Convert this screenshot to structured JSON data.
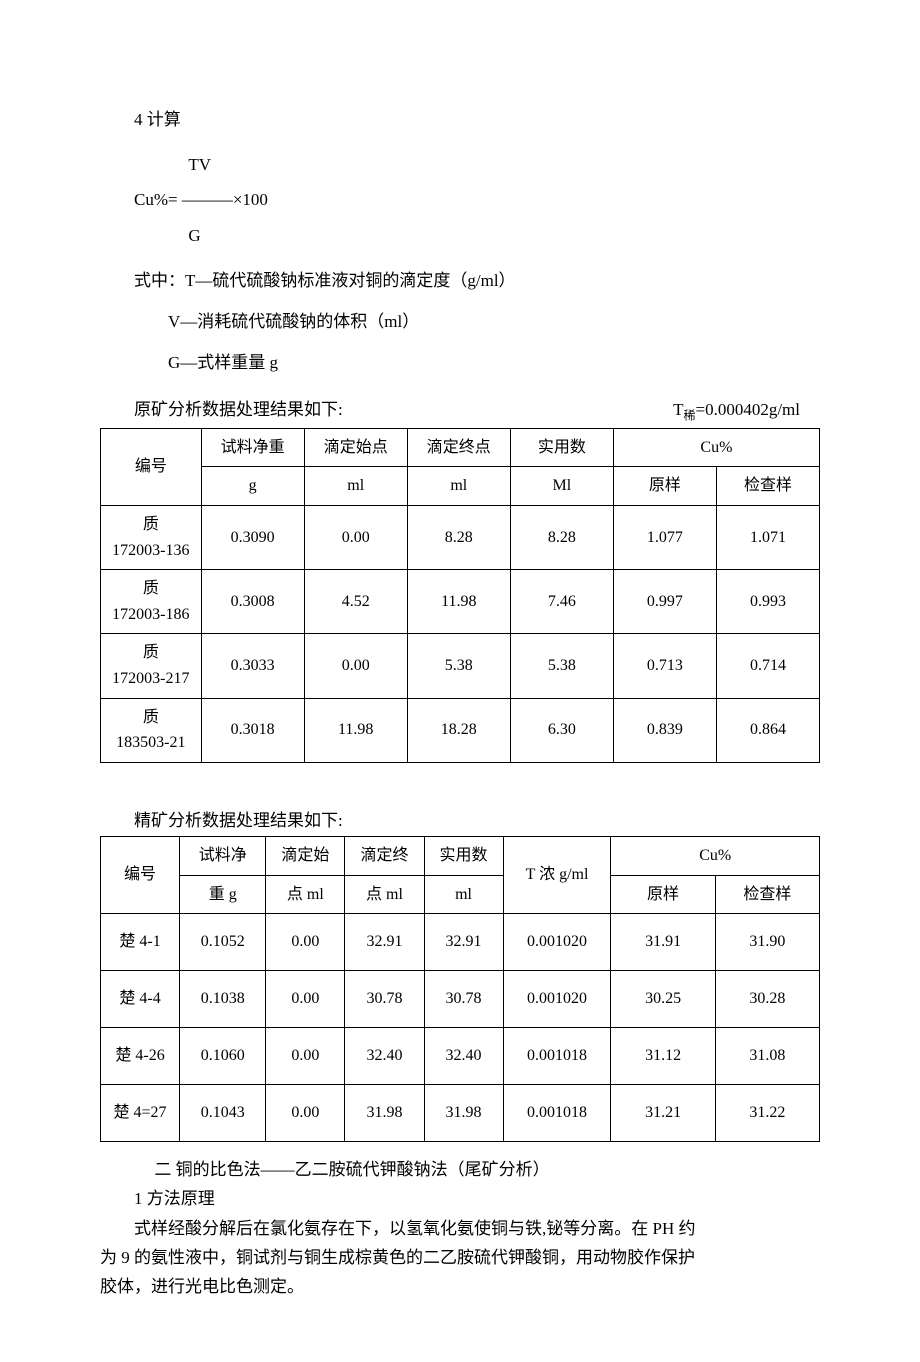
{
  "section_calc_title": "4 计算",
  "formula": {
    "numerator": "TV",
    "expr": "Cu%=  ———×100",
    "denom": "G"
  },
  "legend": {
    "intro": "式中：T—硫代硫酸钠标准液对铜的滴定度（g/ml）",
    "v": "V—消耗硫代硫酸钠的体积（ml）",
    "g": "G—式样重量 g"
  },
  "table1": {
    "caption_left": "原矿分析数据处理结果如下:",
    "caption_right_prefix": "T",
    "caption_right_sub": "稀",
    "caption_right_suffix": "=0.000402g/ml",
    "headers": {
      "id": "编号",
      "weight_top": "试料净重",
      "weight_bot": "g",
      "start_top": "滴定始点",
      "start_bot": "ml",
      "end_top": "滴定终点",
      "end_bot": "ml",
      "used_top": "实用数",
      "used_bot": "Ml",
      "cu_group": "Cu%",
      "cu_orig": "原样",
      "cu_check": "检查样"
    },
    "rows": [
      {
        "id_l1": "质",
        "id_l2": "172003-136",
        "w": "0.3090",
        "s": "0.00",
        "e": "8.28",
        "u": "8.28",
        "o": "1.077",
        "c": "1.071"
      },
      {
        "id_l1": "质",
        "id_l2": "172003-186",
        "w": "0.3008",
        "s": "4.52",
        "e": "11.98",
        "u": "7.46",
        "o": "0.997",
        "c": "0.993"
      },
      {
        "id_l1": "质",
        "id_l2": "172003-217",
        "w": "0.3033",
        "s": "0.00",
        "e": "5.38",
        "u": "5.38",
        "o": "0.713",
        "c": "0.714"
      },
      {
        "id_l1": "质",
        "id_l2": "183503-21",
        "w": "0.3018",
        "s": "11.98",
        "e": "18.28",
        "u": "6.30",
        "o": "0.839",
        "c": "0.864"
      }
    ]
  },
  "table2": {
    "caption_left": "精矿分析数据处理结果如下:",
    "headers": {
      "id": "编号",
      "weight_top": "试料净",
      "weight_bot": "重 g",
      "start_top": "滴定始",
      "start_bot": "点 ml",
      "end_top": "滴定终",
      "end_bot": "点 ml",
      "used_top": "实用数",
      "used_bot": "ml",
      "t_conc": "T 浓 g/ml",
      "cu_group": "Cu%",
      "cu_orig": "原样",
      "cu_check": "检查样"
    },
    "rows": [
      {
        "id": "楚 4-1",
        "w": "0.1052",
        "s": "0.00",
        "e": "32.91",
        "u": "32.91",
        "t": "0.001020",
        "o": "31.91",
        "c": "31.90"
      },
      {
        "id": "楚 4-4",
        "w": "0.1038",
        "s": "0.00",
        "e": "30.78",
        "u": "30.78",
        "t": "0.001020",
        "o": "30.25",
        "c": "30.28"
      },
      {
        "id": "楚 4-26",
        "w": "0.1060",
        "s": "0.00",
        "e": "32.40",
        "u": "32.40",
        "t": "0.001018",
        "o": "31.12",
        "c": "31.08"
      },
      {
        "id": "楚 4=27",
        "w": "0.1043",
        "s": "0.00",
        "e": "31.98",
        "u": "31.98",
        "t": "0.001018",
        "o": "31.21",
        "c": "31.22"
      }
    ]
  },
  "section2": {
    "title": "二 铜的比色法——乙二胺硫代钾酸钠法（尾矿分析）",
    "sub": "1 方法原理",
    "body1": "式样经酸分解后在氯化氨存在下，以氢氧化氨使铜与铁,铋等分离。在 PH 约",
    "body2": "为 9 的氨性液中，铜试剂与铜生成棕黄色的二乙胺硫代钾酸铜，用动物胶作保护",
    "body3": "胶体，进行光电比色测定。"
  }
}
